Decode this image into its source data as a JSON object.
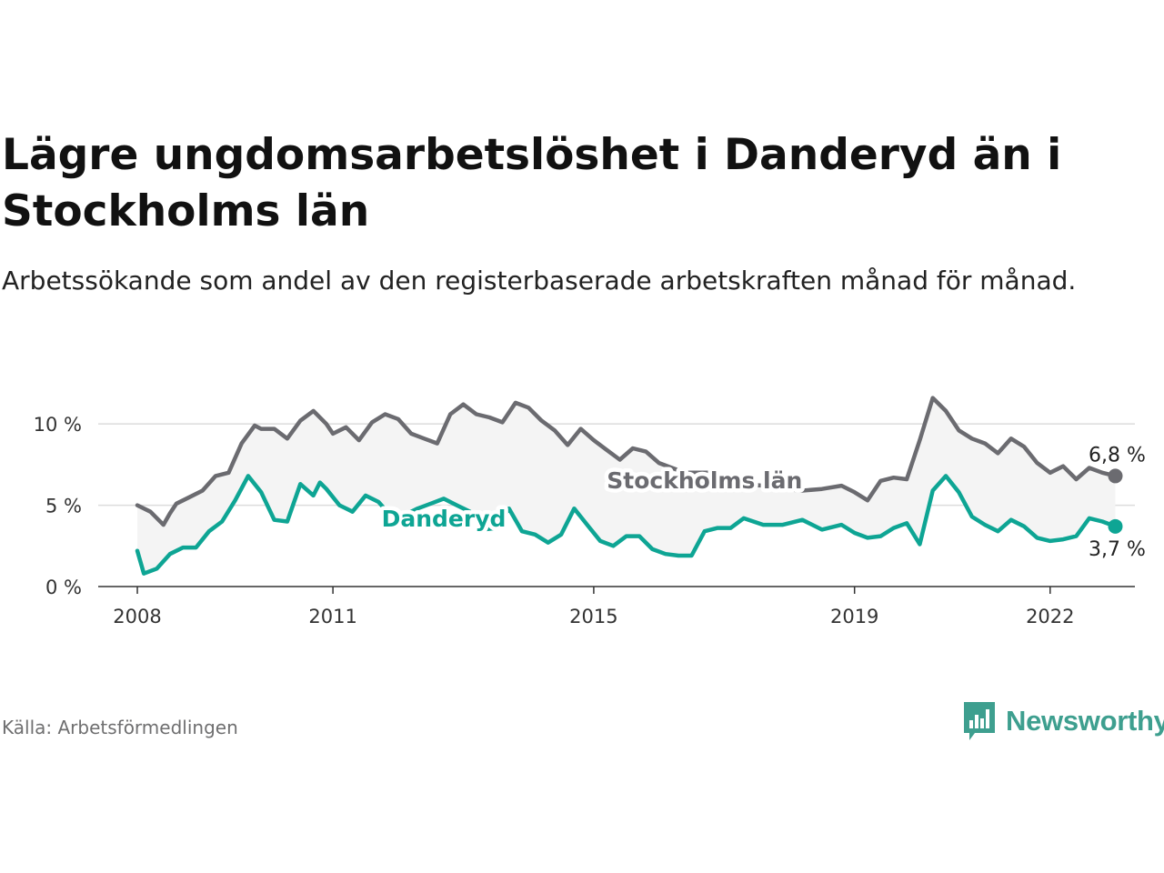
{
  "title": "Lägre ungdomsarbetslöshet i Danderyd än i Stockholms län",
  "subtitle": "Arbetssökande som andel av den registerbaserade arbetskraften månad för månad.",
  "source": "Källa: Arbetsförmedlingen",
  "brand": {
    "name": "Newsworthy",
    "icon": "newsworthy-logo-icon",
    "color": "#3e9f8f"
  },
  "chart_data": {
    "type": "line",
    "title": "Lägre ungdomsarbetslöshet i Danderyd än i Stockholms län",
    "xlabel": "",
    "ylabel": "",
    "ylim": [
      0,
      11.8
    ],
    "xlim": [
      2007.4,
      2023.3
    ],
    "x_ticks": [
      2008,
      2011,
      2015,
      2019,
      2022
    ],
    "x_tick_labels": [
      "2008",
      "2011",
      "2015",
      "2019",
      "2022"
    ],
    "y_ticks": [
      0,
      5,
      10
    ],
    "y_tick_labels": [
      "0 %",
      "5 %",
      "10 %"
    ],
    "grid": true,
    "band_between_series": true,
    "series": [
      {
        "name": "Stockholms län",
        "color": "#6b6b70",
        "last_value_label": "6,8 %",
        "x": [
          2008.0,
          2008.2,
          2008.4,
          2008.5,
          2008.6,
          2008.8,
          2009.0,
          2009.2,
          2009.4,
          2009.6,
          2009.8,
          2009.9,
          2010.1,
          2010.3,
          2010.5,
          2010.7,
          2010.9,
          2011.0,
          2011.2,
          2011.4,
          2011.6,
          2011.8,
          2012.0,
          2012.2,
          2012.4,
          2012.6,
          2012.8,
          2013.0,
          2013.2,
          2013.4,
          2013.6,
          2013.8,
          2014.0,
          2014.2,
          2014.4,
          2014.6,
          2014.8,
          2015.0,
          2015.2,
          2015.4,
          2015.6,
          2015.8,
          2016.0,
          2016.2,
          2016.4,
          2016.6,
          2016.8,
          2017.0,
          2017.3,
          2017.6,
          2017.9,
          2018.2,
          2018.5,
          2018.8,
          2019.0,
          2019.2,
          2019.4,
          2019.6,
          2019.8,
          2020.0,
          2020.2,
          2020.4,
          2020.6,
          2020.8,
          2021.0,
          2021.2,
          2021.4,
          2021.6,
          2021.8,
          2022.0,
          2022.2,
          2022.4,
          2022.6,
          2022.8,
          2023.0
        ],
        "values": [
          5.0,
          4.6,
          3.8,
          4.5,
          5.1,
          5.5,
          5.9,
          6.8,
          7.0,
          8.8,
          9.9,
          9.7,
          9.7,
          9.1,
          10.2,
          10.8,
          10.0,
          9.4,
          9.8,
          9.0,
          10.1,
          10.6,
          10.3,
          9.4,
          9.1,
          8.8,
          10.6,
          11.2,
          10.6,
          10.4,
          10.1,
          11.3,
          11.0,
          10.2,
          9.6,
          8.7,
          9.7,
          9.0,
          8.4,
          7.8,
          8.5,
          8.3,
          7.6,
          7.3,
          7.0,
          7.0,
          7.0,
          6.5,
          6.3,
          6.2,
          6.0,
          5.9,
          6.0,
          6.2,
          5.8,
          5.3,
          6.5,
          6.7,
          6.6,
          9.0,
          11.6,
          10.8,
          9.6,
          9.1,
          8.8,
          8.2,
          9.1,
          8.6,
          7.6,
          7.0,
          7.4,
          6.6,
          7.3,
          7.0,
          6.8
        ]
      },
      {
        "name": "Danderyd",
        "color": "#0ea594",
        "last_value_label": "3,7 %",
        "x": [
          2008.0,
          2008.1,
          2008.3,
          2008.5,
          2008.7,
          2008.9,
          2009.1,
          2009.3,
          2009.5,
          2009.7,
          2009.9,
          2010.1,
          2010.3,
          2010.5,
          2010.7,
          2010.8,
          2010.9,
          2011.1,
          2011.3,
          2011.5,
          2011.7,
          2011.9,
          2012.1,
          2012.3,
          2012.5,
          2012.7,
          2012.9,
          2013.1,
          2013.3,
          2013.5,
          2013.7,
          2013.9,
          2014.1,
          2014.3,
          2014.5,
          2014.7,
          2014.9,
          2015.1,
          2015.3,
          2015.5,
          2015.7,
          2015.9,
          2016.1,
          2016.3,
          2016.5,
          2016.7,
          2016.9,
          2017.1,
          2017.3,
          2017.6,
          2017.9,
          2018.2,
          2018.5,
          2018.8,
          2019.0,
          2019.2,
          2019.4,
          2019.6,
          2019.8,
          2020.0,
          2020.2,
          2020.4,
          2020.6,
          2020.8,
          2021.0,
          2021.2,
          2021.4,
          2021.6,
          2021.8,
          2022.0,
          2022.2,
          2022.4,
          2022.6,
          2022.8,
          2023.0
        ],
        "values": [
          2.2,
          0.8,
          1.1,
          2.0,
          2.4,
          2.4,
          3.4,
          4.0,
          5.3,
          6.8,
          5.8,
          4.1,
          4.0,
          6.3,
          5.6,
          6.4,
          6.0,
          5.0,
          4.6,
          5.6,
          5.2,
          4.3,
          4.4,
          4.8,
          5.1,
          5.4,
          5.0,
          4.6,
          3.5,
          3.6,
          4.8,
          3.4,
          3.2,
          2.7,
          3.2,
          4.8,
          3.8,
          2.8,
          2.5,
          3.1,
          3.1,
          2.3,
          2.0,
          1.9,
          1.9,
          3.4,
          3.6,
          3.6,
          4.2,
          3.8,
          3.8,
          4.1,
          3.5,
          3.8,
          3.3,
          3.0,
          3.1,
          3.6,
          3.9,
          2.6,
          5.9,
          6.8,
          5.8,
          4.3,
          3.8,
          3.4,
          4.1,
          3.7,
          3.0,
          2.8,
          2.9,
          3.1,
          4.2,
          4.0,
          3.7
        ]
      }
    ],
    "inline_labels": [
      "Stockholms län",
      "Danderyd"
    ]
  }
}
